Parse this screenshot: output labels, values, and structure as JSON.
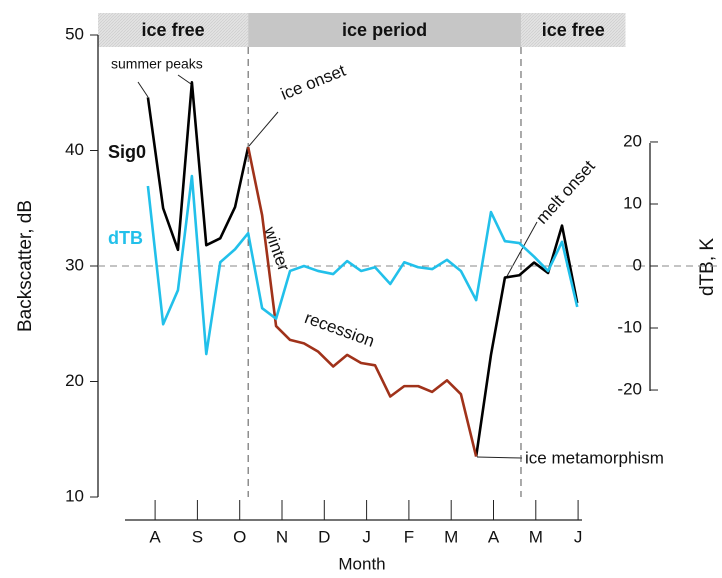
{
  "chart_data": {
    "type": "line",
    "x_label": "Month",
    "y_label": "Backscatter, dB",
    "y2_label": "dTB, K",
    "x": [
      0.83,
      1.19,
      1.54,
      1.87,
      2.21,
      2.54,
      2.89,
      3.2,
      3.53,
      3.86,
      4.19,
      4.52,
      4.85,
      5.21,
      5.54,
      5.87,
      6.2,
      6.56,
      6.89,
      7.22,
      7.55,
      7.9,
      8.23,
      8.59,
      8.94,
      9.27,
      9.61,
      9.96,
      10.29,
      10.62,
      10.98
    ],
    "series": [
      {
        "name": "Sig0",
        "color": "#000000",
        "values": [
          44.6,
          35.0,
          31.4,
          45.9,
          31.8,
          32.4,
          35.1,
          40.3,
          null,
          null,
          null,
          null,
          null,
          null,
          null,
          null,
          null,
          null,
          null,
          null,
          null,
          null,
          null,
          13.5,
          22.3,
          29.0,
          29.2,
          30.3,
          29.4,
          33.5,
          26.8
        ]
      },
      {
        "color": "#a0321a",
        "values": [
          null,
          null,
          null,
          null,
          null,
          null,
          null,
          40.3,
          34.4,
          24.8,
          23.6,
          23.3,
          22.6,
          21.3,
          22.3,
          21.6,
          21.4,
          18.7,
          19.6,
          19.6,
          19.1,
          20.1,
          18.9,
          13.5,
          null,
          null,
          null,
          null,
          null,
          null,
          null
        ]
      },
      {
        "name": "dTB",
        "color": "#22c0ea",
        "axis": "y2",
        "values": [
          12.9,
          -9.4,
          -3.9,
          14.5,
          -14.2,
          0.6,
          2.7,
          5.3,
          -6.8,
          -8.5,
          -0.8,
          0.0,
          -0.8,
          -1.3,
          0.8,
          -0.8,
          -0.2,
          -2.9,
          0.6,
          -0.2,
          -0.5,
          1.0,
          -0.8,
          -5.5,
          8.7,
          4.0,
          3.7,
          1.5,
          -0.8,
          3.9,
          -6.6
        ]
      }
    ],
    "xlim": [
      -0.35,
      12.7
    ],
    "xticks": [
      {
        "value": 1,
        "label": "A"
      },
      {
        "value": 2,
        "label": "S"
      },
      {
        "value": 3,
        "label": "O"
      },
      {
        "value": 4,
        "label": "N"
      },
      {
        "value": 5,
        "label": "D"
      },
      {
        "value": 6,
        "label": "J"
      },
      {
        "value": 7,
        "label": "F"
      },
      {
        "value": 8,
        "label": "M"
      },
      {
        "value": 9,
        "label": "A"
      },
      {
        "value": 10,
        "label": "M"
      },
      {
        "value": 11,
        "label": "J"
      }
    ],
    "ylim": [
      10,
      50
    ],
    "yticks": [
      10,
      20,
      30,
      40,
      50
    ],
    "y2lim": [
      -37.25,
      37.25
    ],
    "y2ticks": [
      -20,
      -10,
      0,
      10,
      20
    ],
    "reference_line": 30,
    "period_boundaries": [
      3.2,
      9.65
    ],
    "periods": [
      {
        "label": "ice free",
        "start": -0.35,
        "end": 3.2,
        "color": "#dcdcdc"
      },
      {
        "label": "ice period",
        "start": 3.2,
        "end": 9.65,
        "color": "#c6c6c6"
      },
      {
        "label": "ice free",
        "start": 9.65,
        "end": 12.12,
        "color": "#dcdcdc"
      }
    ],
    "annotations": [
      "summer peaks",
      "ice onset",
      "winter",
      "recession",
      "melt onset",
      "ice metamorphism"
    ]
  }
}
